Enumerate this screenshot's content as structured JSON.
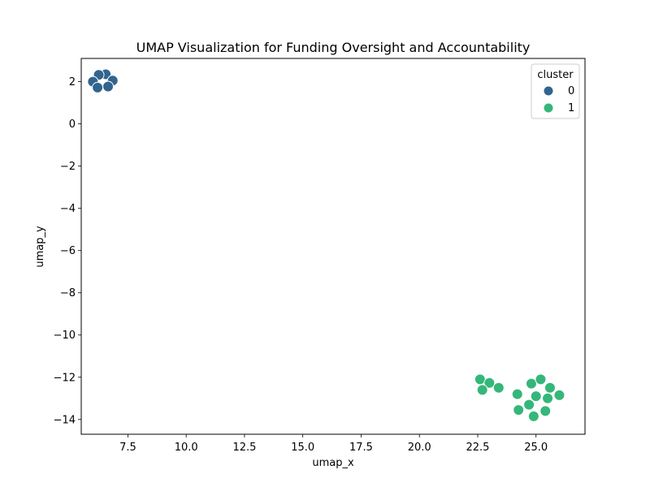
{
  "chart_data": {
    "type": "scatter",
    "title": "UMAP Visualization for Funding Oversight and Accountability",
    "xlabel": "umap_x",
    "ylabel": "umap_y",
    "xlim": [
      5.5,
      27.1
    ],
    "ylim": [
      -14.7,
      3.1
    ],
    "xticks": [
      7.5,
      10.0,
      12.5,
      15.0,
      17.5,
      20.0,
      22.5,
      25.0
    ],
    "xtick_labels": [
      "7.5",
      "10.0",
      "12.5",
      "15.0",
      "17.5",
      "20.0",
      "22.5",
      "25.0"
    ],
    "yticks": [
      2,
      0,
      -2,
      -4,
      -6,
      -8,
      -10,
      -12,
      -14
    ],
    "ytick_labels": [
      "2",
      "0",
      "−2",
      "−4",
      "−6",
      "−8",
      "−10",
      "−12",
      "−14"
    ],
    "grid": false,
    "legend": {
      "title": "cluster",
      "placement": "top-right",
      "entries": [
        {
          "label": "0",
          "color": "#32648e"
        },
        {
          "label": "1",
          "color": "#35b779"
        }
      ]
    },
    "series": [
      {
        "name": "0",
        "color": "#32648e",
        "points": [
          {
            "x": 6.55,
            "y": 2.35
          },
          {
            "x": 6.25,
            "y": 2.32
          },
          {
            "x": 6.85,
            "y": 2.05
          },
          {
            "x": 6.0,
            "y": 2.0
          },
          {
            "x": 6.2,
            "y": 1.72
          },
          {
            "x": 6.65,
            "y": 1.77
          }
        ]
      },
      {
        "name": "1",
        "color": "#35b779",
        "points": [
          {
            "x": 22.6,
            "y": -12.1
          },
          {
            "x": 23.0,
            "y": -12.27
          },
          {
            "x": 23.4,
            "y": -12.5
          },
          {
            "x": 22.7,
            "y": -12.6
          },
          {
            "x": 24.2,
            "y": -12.8
          },
          {
            "x": 24.8,
            "y": -12.3
          },
          {
            "x": 25.2,
            "y": -12.1
          },
          {
            "x": 25.6,
            "y": -12.5
          },
          {
            "x": 25.0,
            "y": -12.9
          },
          {
            "x": 26.0,
            "y": -12.85
          },
          {
            "x": 25.5,
            "y": -13.0
          },
          {
            "x": 24.7,
            "y": -13.3
          },
          {
            "x": 24.25,
            "y": -13.55
          },
          {
            "x": 25.4,
            "y": -13.6
          },
          {
            "x": 24.9,
            "y": -13.85
          }
        ]
      }
    ]
  }
}
